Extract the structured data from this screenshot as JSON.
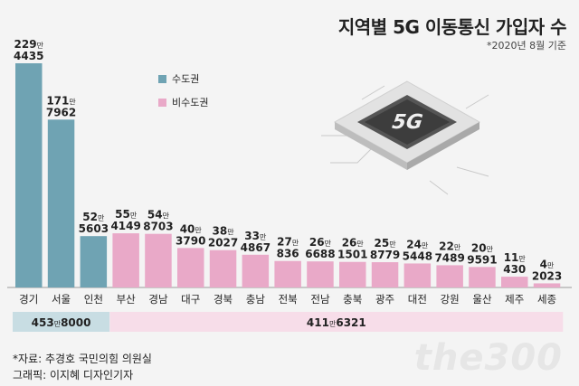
{
  "header": {
    "title": "지역별 5G 이동통신 가입자 수",
    "note": "*2020년 8월 기준"
  },
  "legend": {
    "items": [
      {
        "label": "수도권",
        "color": "#6fa3b3"
      },
      {
        "label": "비수도권",
        "color": "#e9a9c8"
      }
    ]
  },
  "chip_label": "5G",
  "chart_data": {
    "type": "bar",
    "unit_label": "만",
    "categories": [
      "경기",
      "서울",
      "인천",
      "부산",
      "경남",
      "대구",
      "경북",
      "충남",
      "전북",
      "전남",
      "충북",
      "광주",
      "대전",
      "강원",
      "울산",
      "제주",
      "세종"
    ],
    "values": [
      2294435,
      1717962,
      525603,
      554149,
      548703,
      403790,
      382027,
      334867,
      270836,
      266688,
      261501,
      258779,
      245448,
      227489,
      209591,
      110430,
      42023
    ],
    "labels": [
      {
        "man": "229",
        "rest": "4435"
      },
      {
        "man": "171",
        "rest": "7962"
      },
      {
        "man": "52",
        "rest": "5603"
      },
      {
        "man": "55",
        "rest": "4149"
      },
      {
        "man": "54",
        "rest": "8703"
      },
      {
        "man": "40",
        "rest": "3790"
      },
      {
        "man": "38",
        "rest": "2027"
      },
      {
        "man": "33",
        "rest": "4867"
      },
      {
        "man": "27",
        "rest": "836"
      },
      {
        "man": "26",
        "rest": "6688"
      },
      {
        "man": "26",
        "rest": "1501"
      },
      {
        "man": "25",
        "rest": "8779"
      },
      {
        "man": "24",
        "rest": "5448"
      },
      {
        "man": "22",
        "rest": "7489"
      },
      {
        "man": "20",
        "rest": "9591"
      },
      {
        "man": "11",
        "rest": "430"
      },
      {
        "man": "4",
        "rest": "2023"
      }
    ],
    "groups": [
      {
        "name": "수도권",
        "count": 3,
        "color": "#6fa3b3",
        "band": "#c8dde3",
        "total_man": "453",
        "total_rest": "8000"
      },
      {
        "name": "비수도권",
        "count": 14,
        "color": "#e9a9c8",
        "band": "#f7dde9",
        "total_man": "411",
        "total_rest": "6321"
      }
    ]
  },
  "footer": {
    "source": "*자료: 추경호 국민의힘 의원실",
    "credit": "그래픽: 이지혜 디자인기자"
  },
  "watermark": "the300"
}
